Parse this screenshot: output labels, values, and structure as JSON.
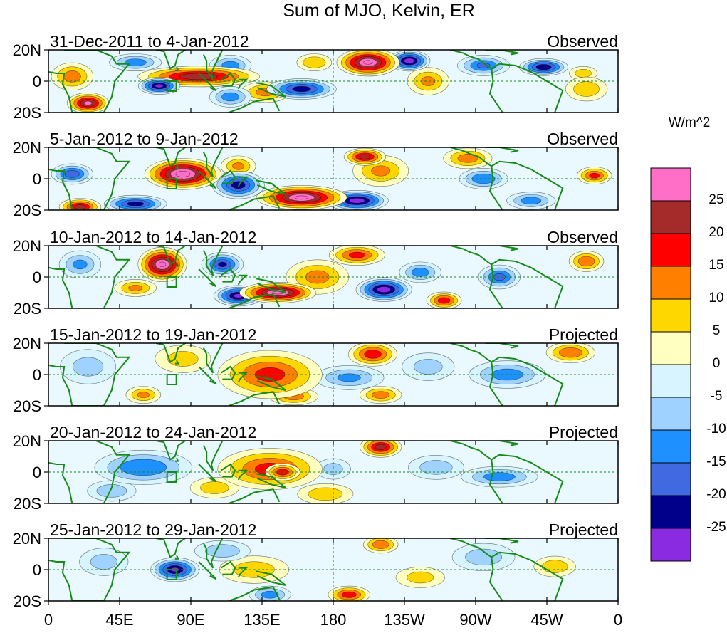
{
  "chart_data": {
    "type": "heatmap",
    "title": "Sum of MJO, Kelvin, ER",
    "units": "W/m^2",
    "x_ticks": [
      "0",
      "45E",
      "90E",
      "135E",
      "180",
      "135W",
      "90W",
      "45W",
      "0"
    ],
    "y_ticks": [
      "20N",
      "0",
      "20S"
    ],
    "xlim": [
      0,
      360
    ],
    "ylim": [
      -20,
      20
    ],
    "colorbar": {
      "levels": [
        -25,
        -20,
        -15,
        -10,
        -5,
        0,
        5,
        10,
        15,
        20,
        25
      ],
      "level_labels": [
        "25",
        "20",
        "15",
        "10",
        "5",
        "0",
        "-5",
        "-10",
        "-15",
        "-20",
        "-25"
      ],
      "colors": [
        "#ff6ec7",
        "#a52a2a",
        "#ff0000",
        "#ff7f00",
        "#ffd700",
        "#ffffc0",
        "#d8f5ff",
        "#a0d2ff",
        "#1e90ff",
        "#4169e1",
        "#00008b",
        "#8a2be2"
      ]
    },
    "panels": [
      {
        "period": "31-Dec-2011 to 4-Jan-2012",
        "status": "Observed",
        "blobs": [
          {
            "lon": 202,
            "lat": 12,
            "value": 30,
            "rx": 18,
            "ry": 8
          },
          {
            "lon": 95,
            "lat": 3,
            "value": 24,
            "rx": 35,
            "ry": 6
          },
          {
            "lon": 25,
            "lat": -14,
            "value": 26,
            "rx": 12,
            "ry": 6
          },
          {
            "lon": 15,
            "lat": 3,
            "value": 12,
            "rx": 12,
            "ry": 8
          },
          {
            "lon": 137,
            "lat": -7,
            "value": 11,
            "rx": 14,
            "ry": 6
          },
          {
            "lon": 168,
            "lat": 12,
            "value": 9,
            "rx": 10,
            "ry": 5
          },
          {
            "lon": 240,
            "lat": 0,
            "value": 10,
            "rx": 12,
            "ry": 8
          },
          {
            "lon": 340,
            "lat": -5,
            "value": 8,
            "rx": 12,
            "ry": 7
          },
          {
            "lon": 338,
            "lat": 5,
            "value": 7,
            "rx": 8,
            "ry": 4
          },
          {
            "lon": 70,
            "lat": -3,
            "value": -26,
            "rx": 12,
            "ry": 5
          },
          {
            "lon": 228,
            "lat": 13,
            "value": -28,
            "rx": 12,
            "ry": 6
          },
          {
            "lon": 313,
            "lat": 9,
            "value": -24,
            "rx": 14,
            "ry": 5
          },
          {
            "lon": 160,
            "lat": -5,
            "value": -22,
            "rx": 20,
            "ry": 6
          },
          {
            "lon": 115,
            "lat": -10,
            "value": -12,
            "rx": 12,
            "ry": 6
          },
          {
            "lon": 115,
            "lat": 10,
            "value": -12,
            "rx": 12,
            "ry": 6
          },
          {
            "lon": 55,
            "lat": 12,
            "value": -12,
            "rx": 15,
            "ry": 5
          },
          {
            "lon": 275,
            "lat": 10,
            "value": -15,
            "rx": 15,
            "ry": 6
          }
        ]
      },
      {
        "period": "5-Jan-2012 to 9-Jan-2012",
        "status": "Observed",
        "blobs": [
          {
            "lon": 85,
            "lat": 3,
            "value": 32,
            "rx": 22,
            "ry": 9
          },
          {
            "lon": 160,
            "lat": -12,
            "value": 30,
            "rx": 26,
            "ry": 7
          },
          {
            "lon": 200,
            "lat": 14,
            "value": 22,
            "rx": 12,
            "ry": 5
          },
          {
            "lon": 345,
            "lat": 2,
            "value": 16,
            "rx": 10,
            "ry": 5
          },
          {
            "lon": 20,
            "lat": -18,
            "value": 22,
            "rx": 12,
            "ry": 5
          },
          {
            "lon": 210,
            "lat": 5,
            "value": 10,
            "rx": 16,
            "ry": 9
          },
          {
            "lon": 265,
            "lat": 13,
            "value": 12,
            "rx": 14,
            "ry": 6
          },
          {
            "lon": 120,
            "lat": 8,
            "value": 10,
            "rx": 10,
            "ry": 6
          },
          {
            "lon": 15,
            "lat": 3,
            "value": -18,
            "rx": 12,
            "ry": 6
          },
          {
            "lon": 55,
            "lat": -16,
            "value": -22,
            "rx": 18,
            "ry": 5
          },
          {
            "lon": 120,
            "lat": -4,
            "value": -22,
            "rx": 15,
            "ry": 8
          },
          {
            "lon": 195,
            "lat": -14,
            "value": -28,
            "rx": 18,
            "ry": 6
          },
          {
            "lon": 275,
            "lat": 0,
            "value": -14,
            "rx": 14,
            "ry": 6
          },
          {
            "lon": 305,
            "lat": -14,
            "value": -12,
            "rx": 14,
            "ry": 5
          }
        ]
      },
      {
        "period": "10-Jan-2012 to 14-Jan-2012",
        "status": "Observed",
        "blobs": [
          {
            "lon": 72,
            "lat": 8,
            "value": 30,
            "rx": 14,
            "ry": 10
          },
          {
            "lon": 145,
            "lat": -10,
            "value": 30,
            "rx": 22,
            "ry": 6
          },
          {
            "lon": 195,
            "lat": 14,
            "value": 16,
            "rx": 16,
            "ry": 6
          },
          {
            "lon": 250,
            "lat": -15,
            "value": 18,
            "rx": 10,
            "ry": 5
          },
          {
            "lon": 170,
            "lat": 0,
            "value": 11,
            "rx": 18,
            "ry": 10
          },
          {
            "lon": 340,
            "lat": 10,
            "value": 14,
            "rx": 10,
            "ry": 6
          },
          {
            "lon": 55,
            "lat": -7,
            "value": 10,
            "rx": 12,
            "ry": 5
          },
          {
            "lon": 110,
            "lat": 8,
            "value": -20,
            "rx": 12,
            "ry": 7
          },
          {
            "lon": 120,
            "lat": -12,
            "value": -26,
            "rx": 14,
            "ry": 6
          },
          {
            "lon": 212,
            "lat": -8,
            "value": -28,
            "rx": 16,
            "ry": 7
          },
          {
            "lon": 285,
            "lat": 0,
            "value": -16,
            "rx": 12,
            "ry": 7
          },
          {
            "lon": 235,
            "lat": 3,
            "value": -12,
            "rx": 12,
            "ry": 6
          },
          {
            "lon": 20,
            "lat": 8,
            "value": -10,
            "rx": 12,
            "ry": 8
          }
        ]
      },
      {
        "period": "15-Jan-2012 to 19-Jan-2012",
        "status": "Projected",
        "blobs": [
          {
            "lon": 140,
            "lat": 0,
            "value": 16,
            "rx": 30,
            "ry": 14
          },
          {
            "lon": 205,
            "lat": 13,
            "value": 18,
            "rx": 14,
            "ry": 7
          },
          {
            "lon": 330,
            "lat": 14,
            "value": 14,
            "rx": 14,
            "ry": 6
          },
          {
            "lon": 85,
            "lat": 10,
            "value": 6,
            "rx": 16,
            "ry": 8
          },
          {
            "lon": 60,
            "lat": -13,
            "value": 10,
            "rx": 10,
            "ry": 5
          },
          {
            "lon": 155,
            "lat": -14,
            "value": 12,
            "rx": 14,
            "ry": 5
          },
          {
            "lon": 210,
            "lat": -13,
            "value": 12,
            "rx": 12,
            "ry": 5
          },
          {
            "lon": 25,
            "lat": 5,
            "value": -6,
            "rx": 16,
            "ry": 10
          },
          {
            "lon": 190,
            "lat": -2,
            "value": -10,
            "rx": 20,
            "ry": 7
          },
          {
            "lon": 290,
            "lat": 0,
            "value": -12,
            "rx": 22,
            "ry": 8
          },
          {
            "lon": 240,
            "lat": 5,
            "value": -6,
            "rx": 15,
            "ry": 8
          }
        ]
      },
      {
        "period": "20-Jan-2012 to 24-Jan-2012",
        "status": "Projected",
        "blobs": [
          {
            "lon": 140,
            "lat": 2,
            "value": 16,
            "rx": 30,
            "ry": 12
          },
          {
            "lon": 148,
            "lat": 0,
            "value": 18,
            "rx": 10,
            "ry": 5
          },
          {
            "lon": 210,
            "lat": 16,
            "value": 22,
            "rx": 12,
            "ry": 6
          },
          {
            "lon": 175,
            "lat": -14,
            "value": 8,
            "rx": 16,
            "ry": 6
          },
          {
            "lon": 105,
            "lat": -10,
            "value": 7,
            "rx": 14,
            "ry": 6
          },
          {
            "lon": 60,
            "lat": 3,
            "value": -14,
            "rx": 28,
            "ry": 10
          },
          {
            "lon": 40,
            "lat": -12,
            "value": -8,
            "rx": 14,
            "ry": 6
          },
          {
            "lon": 180,
            "lat": 2,
            "value": -6,
            "rx": 10,
            "ry": 6
          },
          {
            "lon": 285,
            "lat": -3,
            "value": -12,
            "rx": 22,
            "ry": 6
          },
          {
            "lon": 245,
            "lat": 3,
            "value": -7,
            "rx": 16,
            "ry": 7
          }
        ]
      },
      {
        "period": "25-Jan-2012 to 29-Jan-2012",
        "status": "Projected",
        "blobs": [
          {
            "lon": 80,
            "lat": 0,
            "value": -25,
            "rx": 14,
            "ry": 7
          },
          {
            "lon": 140,
            "lat": -16,
            "value": -12,
            "rx": 12,
            "ry": 5
          },
          {
            "lon": 110,
            "lat": 12,
            "value": -8,
            "rx": 16,
            "ry": 6
          },
          {
            "lon": 275,
            "lat": 8,
            "value": -7,
            "rx": 18,
            "ry": 8
          },
          {
            "lon": 35,
            "lat": 5,
            "value": -6,
            "rx": 14,
            "ry": 8
          },
          {
            "lon": 210,
            "lat": 16,
            "value": 14,
            "rx": 10,
            "ry": 5
          },
          {
            "lon": 190,
            "lat": -16,
            "value": 18,
            "rx": 12,
            "ry": 5
          },
          {
            "lon": 130,
            "lat": 0,
            "value": 7,
            "rx": 20,
            "ry": 8
          },
          {
            "lon": 320,
            "lat": 2,
            "value": 8,
            "rx": 12,
            "ry": 6
          },
          {
            "lon": 235,
            "lat": -5,
            "value": 6,
            "rx": 14,
            "ry": 6
          }
        ]
      }
    ]
  }
}
